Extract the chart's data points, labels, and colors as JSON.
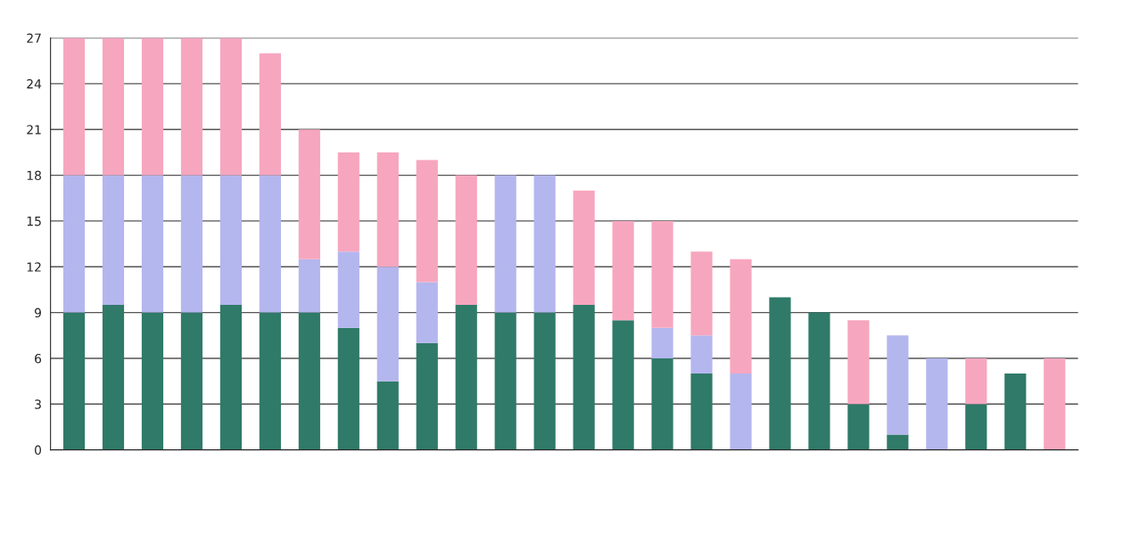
{
  "chart_data": {
    "type": "bar",
    "stacked": true,
    "categories": [
      null,
      null,
      null,
      null,
      null,
      null,
      null,
      null,
      null,
      null,
      null,
      null,
      null,
      null,
      null,
      null,
      null,
      null,
      null,
      null,
      null,
      null,
      null,
      null,
      null,
      null
    ],
    "series": [
      {
        "color": "#2f7a68",
        "values": [
          9,
          9.5,
          9,
          9,
          9.5,
          9,
          9,
          8,
          4.5,
          7,
          9.5,
          9,
          9,
          9.5,
          8.5,
          6,
          5,
          0,
          10,
          9,
          3,
          1,
          0,
          3,
          5,
          0
        ]
      },
      {
        "color": "#b4b6ee",
        "values": [
          9,
          8.5,
          9,
          9,
          8.5,
          9,
          3.5,
          5,
          7.5,
          4,
          0,
          9,
          9,
          0,
          0,
          2,
          2.5,
          5,
          0,
          0,
          0,
          6.5,
          6,
          0,
          0,
          0
        ]
      },
      {
        "color": "#f7a6bf",
        "values": [
          9,
          9,
          9,
          9,
          9,
          8,
          8.5,
          6.5,
          7.5,
          8,
          8.5,
          0,
          0,
          7.5,
          6.5,
          7,
          5.5,
          7.5,
          0,
          0,
          5.5,
          0,
          0,
          3,
          0,
          6
        ]
      }
    ],
    "ylim": [
      0,
      27
    ],
    "yticks": [
      0,
      3,
      6,
      9,
      12,
      15,
      18,
      21,
      24,
      27
    ],
    "grid": "y"
  }
}
